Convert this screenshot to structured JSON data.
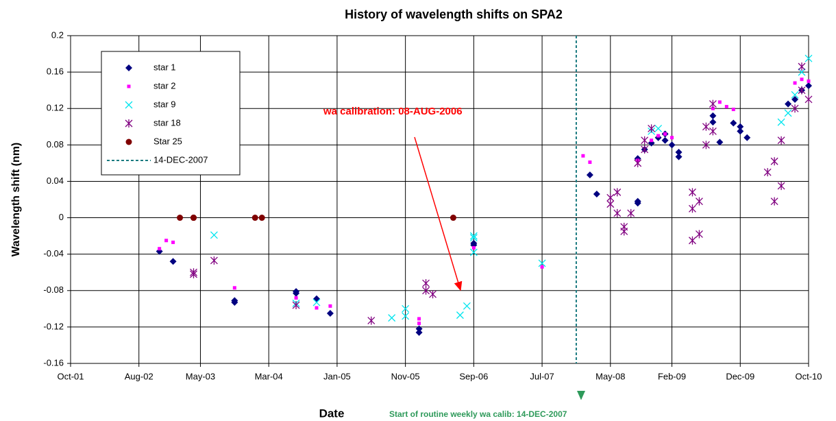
{
  "chart_data": {
    "type": "scatter",
    "title": "History of wavelength shifts on SPA2",
    "x_label": "Date",
    "y_label": "Wavelength shift (nm)",
    "xlim": [
      "2001-10",
      "2010-10"
    ],
    "xticks": [
      {
        "value": "2001-10",
        "label": "Oct-01"
      },
      {
        "value": "2002-08",
        "label": "Aug-02"
      },
      {
        "value": "2003-05",
        "label": "May-03"
      },
      {
        "value": "2004-03",
        "label": "Mar-04"
      },
      {
        "value": "2005-01",
        "label": "Jan-05"
      },
      {
        "value": "2005-11",
        "label": "Nov-05"
      },
      {
        "value": "2006-09",
        "label": "Sep-06"
      },
      {
        "value": "2007-07",
        "label": "Jul-07"
      },
      {
        "value": "2008-05",
        "label": "May-08"
      },
      {
        "value": "2009-02",
        "label": "Feb-09"
      },
      {
        "value": "2009-12",
        "label": "Dec-09"
      },
      {
        "value": "2010-10",
        "label": "Oct-10"
      }
    ],
    "ylim": [
      -0.16,
      0.2
    ],
    "yticks": [
      -0.16,
      -0.12,
      -0.08,
      -0.04,
      0,
      0.04,
      0.08,
      0.12,
      0.16,
      0.2
    ],
    "grid": true,
    "legend": "upper left",
    "series": [
      {
        "name": "star 1",
        "color": "#000080",
        "marker": "diamond",
        "x": [
          "2002-11",
          "2003-01",
          "2003-10",
          "2003-10",
          "2004-07",
          "2004-07",
          "2004-10",
          "2004-12",
          "2006-01",
          "2006-01",
          "2006-09",
          "2006-09",
          "2008-02",
          "2008-03",
          "2008-09",
          "2008-09",
          "2008-09",
          "2008-10",
          "2008-11",
          "2008-12",
          "2009-01",
          "2009-01",
          "2009-02",
          "2009-03",
          "2009-03",
          "2009-08",
          "2009-08",
          "2009-09",
          "2009-11",
          "2009-12",
          "2009-12",
          "2010-01",
          "2010-07",
          "2010-08",
          "2010-09",
          "2010-10"
        ],
        "values": [
          -0.037,
          -0.048,
          -0.091,
          -0.093,
          -0.081,
          -0.083,
          -0.089,
          -0.105,
          -0.122,
          -0.126,
          -0.03,
          -0.028,
          0.047,
          0.026,
          0.018,
          0.016,
          0.065,
          0.075,
          0.082,
          0.088,
          0.092,
          0.085,
          0.08,
          0.072,
          0.067,
          0.105,
          0.112,
          0.083,
          0.104,
          0.1,
          0.095,
          0.088,
          0.125,
          0.13,
          0.14,
          0.145
        ]
      },
      {
        "name": "star 2",
        "color": "#ff00ff",
        "marker": "square",
        "x": [
          "2002-11",
          "2002-12",
          "2003-01",
          "2003-10",
          "2004-07",
          "2004-10",
          "2004-12",
          "2006-01",
          "2006-01",
          "2006-09",
          "2007-07",
          "2008-01",
          "2008-02",
          "2008-09",
          "2008-11",
          "2008-12",
          "2009-01",
          "2009-02",
          "2009-08",
          "2009-09",
          "2009-10",
          "2009-11",
          "2010-08",
          "2010-09",
          "2010-10"
        ],
        "values": [
          -0.034,
          -0.025,
          -0.027,
          -0.077,
          -0.088,
          -0.099,
          -0.097,
          -0.111,
          -0.116,
          -0.033,
          -0.054,
          0.068,
          0.061,
          0.063,
          0.085,
          0.09,
          0.092,
          0.088,
          0.12,
          0.127,
          0.122,
          0.119,
          0.148,
          0.152,
          0.15
        ]
      },
      {
        "name": "star 9",
        "color": "#00e5ee",
        "marker": "x",
        "x": [
          "2003-07",
          "2004-07",
          "2004-10",
          "2005-09",
          "2005-11",
          "2005-11",
          "2006-07",
          "2006-08",
          "2006-09",
          "2006-09",
          "2006-09",
          "2007-07",
          "2008-11",
          "2008-12",
          "2010-06",
          "2010-07",
          "2010-08",
          "2010-09",
          "2010-10"
        ],
        "values": [
          -0.019,
          -0.094,
          -0.093,
          -0.11,
          -0.1,
          -0.108,
          -0.107,
          -0.097,
          -0.022,
          -0.02,
          -0.038,
          -0.05,
          0.095,
          0.098,
          0.105,
          0.115,
          0.135,
          0.16,
          0.175
        ]
      },
      {
        "name": "star 18",
        "color": "#800080",
        "marker": "asterisk",
        "x": [
          "2003-04",
          "2003-04",
          "2003-07",
          "2004-07",
          "2005-06",
          "2006-02",
          "2006-02",
          "2006-03",
          "2008-05",
          "2008-05",
          "2008-06",
          "2008-06",
          "2008-07",
          "2008-07",
          "2008-08",
          "2008-09",
          "2008-10",
          "2008-10",
          "2008-11",
          "2009-05",
          "2009-05",
          "2009-05",
          "2009-06",
          "2009-06",
          "2009-07",
          "2009-07",
          "2009-08",
          "2009-08",
          "2010-04",
          "2010-05",
          "2010-05",
          "2010-06",
          "2010-06",
          "2010-08",
          "2010-09",
          "2010-09",
          "2010-10"
        ],
        "values": [
          -0.06,
          -0.062,
          -0.047,
          -0.096,
          -0.113,
          -0.08,
          -0.072,
          -0.084,
          0.015,
          0.022,
          0.005,
          0.028,
          -0.01,
          -0.015,
          0.005,
          0.06,
          0.075,
          0.085,
          0.098,
          -0.025,
          0.01,
          0.028,
          -0.018,
          0.018,
          0.08,
          0.1,
          0.095,
          0.125,
          0.05,
          0.018,
          0.062,
          0.035,
          0.085,
          0.12,
          0.14,
          0.166,
          0.13
        ]
      },
      {
        "name": "Star 25",
        "color": "#800000",
        "marker": "circle",
        "x": [
          "2003-02",
          "2003-04",
          "2003-04",
          "2003-04",
          "2004-01",
          "2004-02",
          "2006-06"
        ],
        "values": [
          0,
          0,
          0,
          0,
          0,
          0,
          0
        ]
      }
    ],
    "vline": {
      "x": "2007-12",
      "label": "14-DEC-2007",
      "color": "#1a7a80"
    },
    "annotations": [
      "wa calibration: 08-AUG-2006",
      "Start of routine weekly wa calib: 14-DEC-2007"
    ]
  }
}
